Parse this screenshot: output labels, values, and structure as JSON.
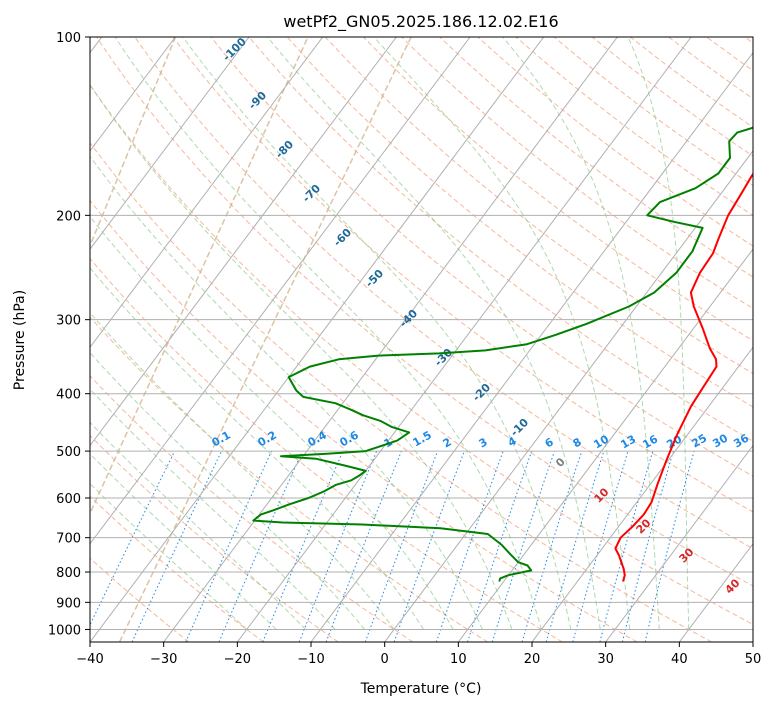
{
  "chart_data": {
    "type": "line",
    "title": "wetPf2_GN05.2025.186.12.02.E16",
    "xlabel": "Temperature (°C)",
    "ylabel": "Pressure (hPa)",
    "xlim": [
      -40,
      50
    ],
    "ylim": [
      1050,
      100
    ],
    "y_scale": "log",
    "x_ticks": [
      -40,
      -30,
      -20,
      -10,
      0,
      10,
      20,
      30,
      40,
      50
    ],
    "y_ticks": [
      100,
      200,
      300,
      400,
      500,
      600,
      700,
      800,
      900,
      1000
    ],
    "grid": true,
    "series": [
      {
        "color": "#ff0000",
        "points": [
          [
            26.2,
            830
          ],
          [
            25.8,
            810
          ],
          [
            25.0,
            790
          ],
          [
            24.0,
            770
          ],
          [
            23.0,
            750
          ],
          [
            21.8,
            730
          ],
          [
            21.4,
            700
          ],
          [
            21.9,
            670
          ],
          [
            22.2,
            640
          ],
          [
            22.0,
            610
          ],
          [
            21.0,
            570
          ],
          [
            19.8,
            520
          ],
          [
            18.6,
            470
          ],
          [
            17.6,
            420
          ],
          [
            17.3,
            390
          ],
          [
            17.0,
            360
          ],
          [
            16.2,
            350
          ],
          [
            14.2,
            335
          ],
          [
            11.2,
            310
          ],
          [
            7.8,
            285
          ],
          [
            6.0,
            270
          ],
          [
            5.2,
            250
          ],
          [
            5.0,
            232
          ],
          [
            4.2,
            218
          ],
          [
            3.2,
            200
          ],
          [
            2.8,
            185
          ],
          [
            2.4,
            172
          ],
          [
            2.2,
            158
          ],
          [
            2.0,
            148
          ],
          [
            1.4,
            138
          ],
          [
            0.8,
            128
          ],
          [
            0.2,
            120
          ],
          [
            0.0,
            116
          ],
          [
            0.4,
            110
          ],
          [
            1.2,
            103
          ],
          [
            1.6,
            100
          ]
        ]
      },
      {
        "color": "#008000",
        "points": [
          [
            9.4,
            830
          ],
          [
            9.2,
            820
          ],
          [
            10.0,
            810
          ],
          [
            12.6,
            795
          ],
          [
            11.6,
            780
          ],
          [
            10.0,
            770
          ],
          [
            8.0,
            745
          ],
          [
            6.0,
            720
          ],
          [
            3.0,
            690
          ],
          [
            -4.0,
            675
          ],
          [
            -15.0,
            665
          ],
          [
            -26.0,
            660
          ],
          [
            -30.2,
            655
          ],
          [
            -29.8,
            640
          ],
          [
            -28.6,
            630
          ],
          [
            -27.0,
            615
          ],
          [
            -25.0,
            600
          ],
          [
            -23.6,
            585
          ],
          [
            -22.6,
            570
          ],
          [
            -21.0,
            560
          ],
          [
            -20.4,
            550
          ],
          [
            -20.0,
            540
          ],
          [
            -23.0,
            530
          ],
          [
            -28.0,
            515
          ],
          [
            -33.0,
            510
          ],
          [
            -27.0,
            505
          ],
          [
            -22.0,
            500
          ],
          [
            -18.8,
            480
          ],
          [
            -18.0,
            465
          ],
          [
            -21.0,
            455
          ],
          [
            -23.0,
            445
          ],
          [
            -26.0,
            435
          ],
          [
            -28.4,
            425
          ],
          [
            -31.0,
            415
          ],
          [
            -36.0,
            405
          ],
          [
            -37.6,
            395
          ],
          [
            -39.4,
            380
          ],
          [
            -40.0,
            375
          ],
          [
            -38.2,
            360
          ],
          [
            -35.0,
            350
          ],
          [
            -30.0,
            345
          ],
          [
            -22.0,
            342
          ],
          [
            -16.0,
            338
          ],
          [
            -11.0,
            330
          ],
          [
            -8.0,
            318
          ],
          [
            -5.0,
            305
          ],
          [
            -1.0,
            285
          ],
          [
            1.0,
            270
          ],
          [
            2.0,
            250
          ],
          [
            2.0,
            230
          ],
          [
            1.0,
            210
          ],
          [
            -3.6,
            205
          ],
          [
            -7.8,
            200
          ],
          [
            -7.4,
            190
          ],
          [
            -4.0,
            180
          ],
          [
            -2.4,
            170
          ],
          [
            -2.4,
            160
          ],
          [
            -4.2,
            150
          ],
          [
            -4.0,
            145
          ],
          [
            -1.0,
            140
          ],
          [
            1.6,
            132
          ],
          [
            3.4,
            120
          ],
          [
            4.6,
            110
          ],
          [
            6.6,
            100
          ]
        ]
      }
    ],
    "isotherm_labels": [
      "-100",
      "-90",
      "-80",
      "-70",
      "-60",
      "-50",
      "-40",
      "-30",
      "-20",
      "-10"
    ],
    "mixing_ratio_labels": [
      "0.1",
      "0.2",
      "0.4",
      "0.6",
      "1",
      "1.5",
      "2",
      "3",
      "4",
      "6",
      "8",
      "10",
      "13",
      "16",
      "20",
      "25",
      "30",
      "36"
    ],
    "warm_isotherm_labels": [
      "0",
      "10",
      "20",
      "30",
      "40"
    ],
    "colors": {
      "temperature": "#ff0000",
      "dewpoint": "#008000",
      "isotherm_label": "#1f6a99",
      "mixing_ratio": "#1e88e5",
      "warm_label": "#d62728",
      "zero_label": "#808080"
    }
  }
}
